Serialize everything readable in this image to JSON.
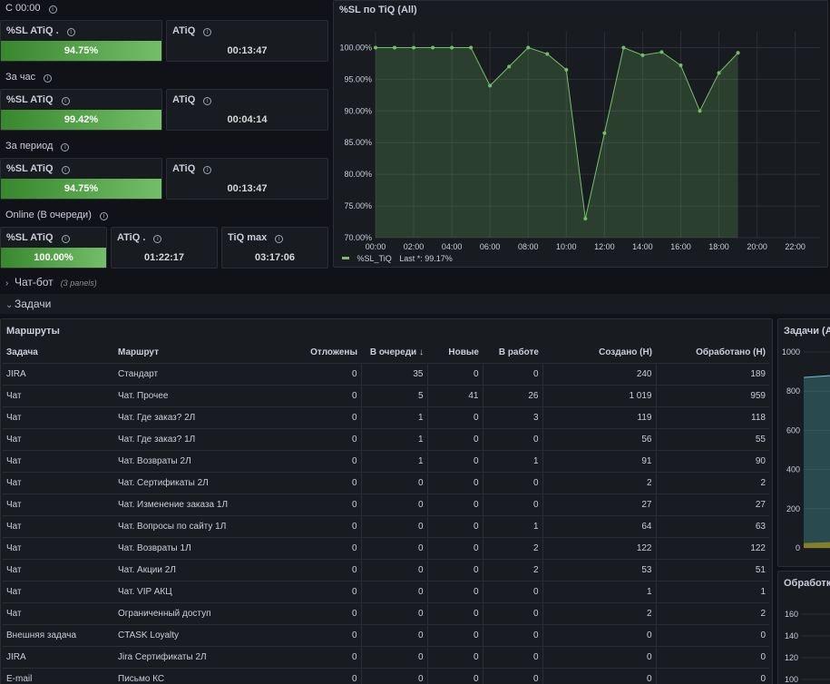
{
  "rows": [
    {
      "label": "С 00:00",
      "sl_label": "%SL ATiQ .",
      "sl_value": "94.75%",
      "atiq_label": "ATiQ",
      "atiq_value": "00:13:47"
    },
    {
      "label": "За час",
      "sl_label": "%SL ATiQ",
      "sl_value": "99.42%",
      "atiq_label": "ATiQ",
      "atiq_value": "00:04:14"
    },
    {
      "label": "За период",
      "sl_label": "%SL ATiQ",
      "sl_value": "94.75%",
      "atiq_label": "ATiQ",
      "atiq_value": "00:13:47"
    }
  ],
  "online": {
    "label": "Online (В очереди)",
    "sl_label": "%SL ATiQ",
    "sl_value": "100.00%",
    "atiq_label": "ATiQ .",
    "atiq_value": "01:22:17",
    "tiqmax_label": "TiQ max",
    "tiqmax_value": "03:17:06"
  },
  "chart_panel": {
    "title": "%SL по TiQ (All)",
    "legend_name": "%SL_TiQ",
    "legend_last": "Last *: 99.17%"
  },
  "chart_data": {
    "type": "area",
    "title": "%SL по TiQ (All)",
    "x": [
      "00:00",
      "01:00",
      "02:00",
      "03:00",
      "04:00",
      "05:00",
      "06:00",
      "07:00",
      "08:00",
      "09:00",
      "10:00",
      "11:00",
      "12:00",
      "13:00",
      "14:00",
      "15:00",
      "16:00",
      "17:00",
      "18:00",
      "19:00"
    ],
    "series": [
      {
        "name": "%SL_TiQ",
        "values": [
          100.0,
          100.0,
          100.0,
          100.0,
          100.0,
          100.0,
          94.0,
          97.0,
          100.0,
          99.0,
          96.5,
          73.0,
          86.5,
          100.0,
          98.8,
          99.3,
          97.2,
          90.0,
          96.0,
          99.17
        ]
      }
    ],
    "xticks": [
      "00:00",
      "02:00",
      "04:00",
      "06:00",
      "08:00",
      "10:00",
      "12:00",
      "14:00",
      "16:00",
      "18:00",
      "20:00",
      "22:00"
    ],
    "yticks": [
      "70.00%",
      "75.00%",
      "80.00%",
      "85.00%",
      "90.00%",
      "95.00%",
      "100.00%"
    ],
    "ylim": [
      70,
      102.5
    ],
    "xlim_hours": [
      0,
      23.3
    ],
    "color": "#73bf69"
  },
  "sections": {
    "chatbot": {
      "label": "Чат-бот",
      "sub": "(3 panels)"
    },
    "tasks": {
      "label": "Задачи"
    }
  },
  "routes": {
    "title": "Маршруты",
    "columns": [
      "Задача",
      "Маршрут",
      "Отложены",
      "В очереди",
      "Новые",
      "В работе",
      "Создано (Н)",
      "Обработано (Н)"
    ],
    "sort_icon": "arrow-down-icon",
    "rows": [
      [
        "JIRA",
        "Стандарт",
        "0",
        "35",
        "0",
        "0",
        "240",
        "189"
      ],
      [
        "Чат",
        "Чат. Прочее",
        "0",
        "5",
        "41",
        "26",
        "1 019",
        "959"
      ],
      [
        "Чат",
        "Чат. Где заказ? 2Л",
        "0",
        "1",
        "0",
        "3",
        "119",
        "118"
      ],
      [
        "Чат",
        "Чат. Где заказ? 1Л",
        "0",
        "1",
        "0",
        "0",
        "56",
        "55"
      ],
      [
        "Чат",
        "Чат. Возвраты 2Л",
        "0",
        "1",
        "0",
        "1",
        "91",
        "90"
      ],
      [
        "Чат",
        "Чат. Сертификаты 2Л",
        "0",
        "0",
        "0",
        "0",
        "2",
        "2"
      ],
      [
        "Чат",
        "Чат. Изменение заказа 1Л",
        "0",
        "0",
        "0",
        "0",
        "27",
        "27"
      ],
      [
        "Чат",
        "Чат. Вопросы по сайту 1Л",
        "0",
        "0",
        "0",
        "1",
        "64",
        "63"
      ],
      [
        "Чат",
        "Чат. Возвраты 1Л",
        "0",
        "0",
        "0",
        "2",
        "122",
        "122"
      ],
      [
        "Чат",
        "Чат. Акции 2Л",
        "0",
        "0",
        "0",
        "2",
        "53",
        "51"
      ],
      [
        "Чат",
        "Чат. VIP АКЦ",
        "0",
        "0",
        "0",
        "0",
        "1",
        "1"
      ],
      [
        "Чат",
        "Ограниченный доступ",
        "0",
        "0",
        "0",
        "0",
        "2",
        "2"
      ],
      [
        "Внешняя задача",
        "CTASK Loyalty",
        "0",
        "0",
        "0",
        "0",
        "0",
        "0"
      ],
      [
        "JIRA",
        "Jira Сертификаты 2Л",
        "0",
        "0",
        "0",
        "0",
        "0",
        "0"
      ],
      [
        "E-mail",
        "Письмо КС",
        "0",
        "0",
        "0",
        "0",
        "0",
        "0"
      ]
    ]
  },
  "tasks_chart": {
    "title": "Задачи (All",
    "yticks": [
      "0",
      "200",
      "400",
      "600",
      "800",
      "1000"
    ]
  },
  "processing_chart": {
    "title": "Обработка",
    "yticks": [
      "160",
      "140",
      "120",
      "100"
    ]
  }
}
